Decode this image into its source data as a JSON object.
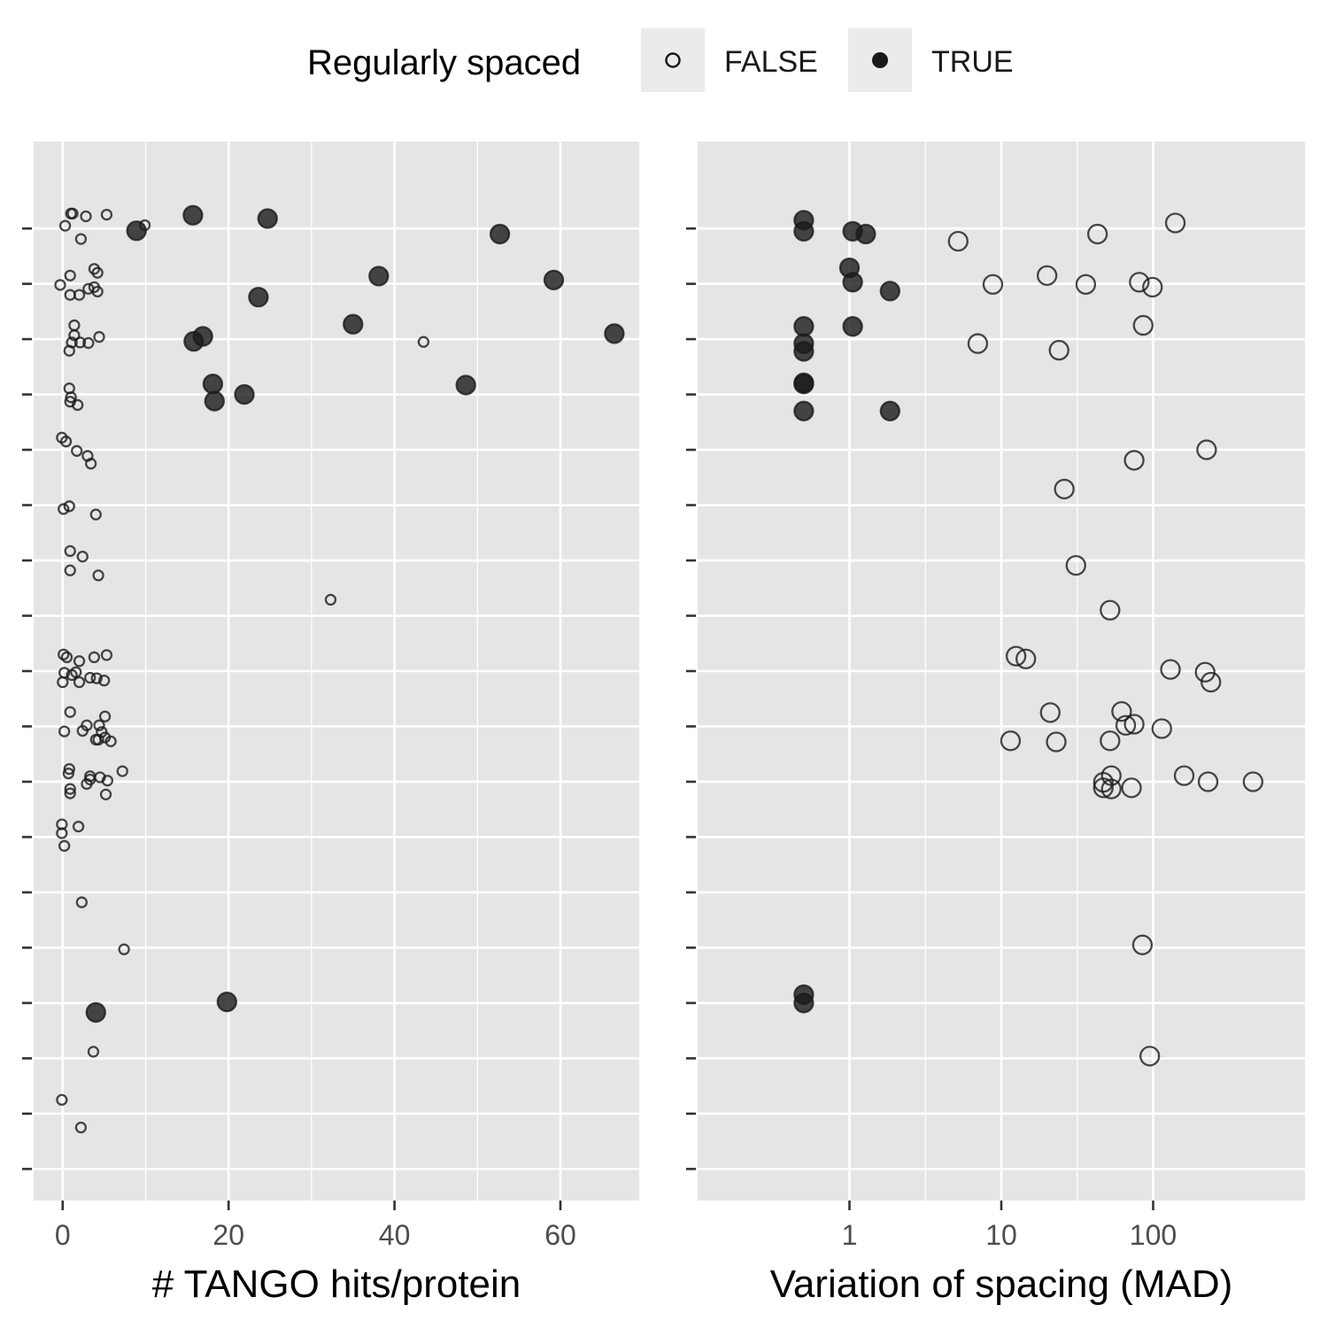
{
  "legend": {
    "title": "Regularly spaced",
    "items": [
      {
        "label": "FALSE",
        "filled": false
      },
      {
        "label": "TRUE",
        "filled": true
      }
    ]
  },
  "colors": {
    "panel_bg": "#e5e5e5",
    "grid": "#ffffff",
    "point": "#1a1a1a",
    "tick_label": "#4d4d4d"
  },
  "chart_data": [
    {
      "type": "scatter",
      "xlabel": "# TANGO hits/protein",
      "ylabel": "",
      "xlim": [
        -3.5,
        69.5
      ],
      "xticks": [
        0,
        20,
        40,
        60
      ],
      "ylim": [
        0.43,
        19.57
      ],
      "y_categories": 18,
      "grid": true,
      "legend_placement": "top",
      "points": [
        {
          "x": 1.0,
          "y": 18.27,
          "reg": false
        },
        {
          "x": 1.2,
          "y": 18.27,
          "reg": false
        },
        {
          "x": 2.8,
          "y": 18.22,
          "reg": false
        },
        {
          "x": 5.3,
          "y": 18.25,
          "reg": false
        },
        {
          "x": 0.3,
          "y": 18.05,
          "reg": false
        },
        {
          "x": 9.9,
          "y": 18.06,
          "reg": false
        },
        {
          "x": 2.2,
          "y": 17.81,
          "reg": false
        },
        {
          "x": 15.7,
          "y": 18.24,
          "reg": true
        },
        {
          "x": 24.7,
          "y": 18.18,
          "reg": true
        },
        {
          "x": 8.9,
          "y": 17.96,
          "reg": true
        },
        {
          "x": 52.7,
          "y": 17.9,
          "reg": true
        },
        {
          "x": 3.8,
          "y": 17.27,
          "reg": false
        },
        {
          "x": 4.2,
          "y": 17.2,
          "reg": false
        },
        {
          "x": 0.9,
          "y": 17.15,
          "reg": false
        },
        {
          "x": -0.3,
          "y": 16.98,
          "reg": false
        },
        {
          "x": 3.1,
          "y": 16.91,
          "reg": false
        },
        {
          "x": 3.8,
          "y": 16.94,
          "reg": false
        },
        {
          "x": 4.2,
          "y": 16.86,
          "reg": false
        },
        {
          "x": 0.9,
          "y": 16.8,
          "reg": false
        },
        {
          "x": 2.0,
          "y": 16.8,
          "reg": false
        },
        {
          "x": 38.1,
          "y": 17.14,
          "reg": true
        },
        {
          "x": 59.2,
          "y": 17.07,
          "reg": true
        },
        {
          "x": 23.6,
          "y": 16.76,
          "reg": true
        },
        {
          "x": 1.4,
          "y": 16.25,
          "reg": false
        },
        {
          "x": 1.4,
          "y": 16.07,
          "reg": false
        },
        {
          "x": 4.4,
          "y": 16.04,
          "reg": false
        },
        {
          "x": 1.1,
          "y": 15.94,
          "reg": false
        },
        {
          "x": 2.1,
          "y": 15.94,
          "reg": false
        },
        {
          "x": 3.1,
          "y": 15.93,
          "reg": false
        },
        {
          "x": 0.8,
          "y": 15.79,
          "reg": false
        },
        {
          "x": 43.5,
          "y": 15.95,
          "reg": false
        },
        {
          "x": 35.0,
          "y": 16.27,
          "reg": true
        },
        {
          "x": 16.9,
          "y": 16.05,
          "reg": true
        },
        {
          "x": 15.8,
          "y": 15.96,
          "reg": true
        },
        {
          "x": 66.5,
          "y": 16.1,
          "reg": true
        },
        {
          "x": 0.8,
          "y": 15.11,
          "reg": false
        },
        {
          "x": 1.0,
          "y": 14.95,
          "reg": false
        },
        {
          "x": 0.9,
          "y": 14.87,
          "reg": false
        },
        {
          "x": 1.8,
          "y": 14.81,
          "reg": false
        },
        {
          "x": 18.1,
          "y": 15.19,
          "reg": true
        },
        {
          "x": 48.6,
          "y": 15.17,
          "reg": true
        },
        {
          "x": 21.9,
          "y": 15.0,
          "reg": true
        },
        {
          "x": 18.3,
          "y": 14.88,
          "reg": true
        },
        {
          "x": -0.1,
          "y": 14.22,
          "reg": false
        },
        {
          "x": 0.4,
          "y": 14.15,
          "reg": false
        },
        {
          "x": 1.7,
          "y": 13.98,
          "reg": false
        },
        {
          "x": 3.0,
          "y": 13.89,
          "reg": false
        },
        {
          "x": 3.4,
          "y": 13.75,
          "reg": false
        },
        {
          "x": 0.8,
          "y": 12.98,
          "reg": false
        },
        {
          "x": 0.1,
          "y": 12.93,
          "reg": false
        },
        {
          "x": 4.0,
          "y": 12.83,
          "reg": false
        },
        {
          "x": 0.9,
          "y": 12.17,
          "reg": false
        },
        {
          "x": 2.4,
          "y": 12.07,
          "reg": false
        },
        {
          "x": 0.9,
          "y": 11.82,
          "reg": false
        },
        {
          "x": 4.3,
          "y": 11.73,
          "reg": false
        },
        {
          "x": 32.3,
          "y": 11.29,
          "reg": false
        },
        {
          "x": 0.1,
          "y": 10.3,
          "reg": false
        },
        {
          "x": 5.3,
          "y": 10.29,
          "reg": false
        },
        {
          "x": 0.5,
          "y": 10.25,
          "reg": false
        },
        {
          "x": 3.8,
          "y": 10.25,
          "reg": false
        },
        {
          "x": 2.0,
          "y": 10.18,
          "reg": false
        },
        {
          "x": 0.2,
          "y": 9.97,
          "reg": false
        },
        {
          "x": 1.6,
          "y": 9.98,
          "reg": false
        },
        {
          "x": 1.1,
          "y": 9.93,
          "reg": false
        },
        {
          "x": 3.3,
          "y": 9.88,
          "reg": false
        },
        {
          "x": 4.1,
          "y": 9.87,
          "reg": false
        },
        {
          "x": 5.0,
          "y": 9.83,
          "reg": false
        },
        {
          "x": 0.0,
          "y": 9.8,
          "reg": false
        },
        {
          "x": 2.0,
          "y": 9.8,
          "reg": false
        },
        {
          "x": 0.9,
          "y": 9.26,
          "reg": false
        },
        {
          "x": 5.1,
          "y": 9.18,
          "reg": false
        },
        {
          "x": 2.9,
          "y": 9.02,
          "reg": false
        },
        {
          "x": 4.4,
          "y": 9.02,
          "reg": false
        },
        {
          "x": 0.2,
          "y": 8.91,
          "reg": false
        },
        {
          "x": 2.4,
          "y": 8.92,
          "reg": false
        },
        {
          "x": 4.7,
          "y": 8.9,
          "reg": false
        },
        {
          "x": 5.1,
          "y": 8.8,
          "reg": false
        },
        {
          "x": 4.3,
          "y": 8.76,
          "reg": false
        },
        {
          "x": 4.0,
          "y": 8.76,
          "reg": false
        },
        {
          "x": 5.8,
          "y": 8.73,
          "reg": false
        },
        {
          "x": 0.8,
          "y": 8.23,
          "reg": false
        },
        {
          "x": 7.2,
          "y": 8.19,
          "reg": false
        },
        {
          "x": 0.7,
          "y": 8.15,
          "reg": false
        },
        {
          "x": 3.3,
          "y": 8.1,
          "reg": false
        },
        {
          "x": 4.5,
          "y": 8.08,
          "reg": false
        },
        {
          "x": 3.3,
          "y": 8.04,
          "reg": false
        },
        {
          "x": 5.4,
          "y": 8.02,
          "reg": false
        },
        {
          "x": 2.9,
          "y": 7.96,
          "reg": false
        },
        {
          "x": 0.9,
          "y": 7.87,
          "reg": false
        },
        {
          "x": 0.9,
          "y": 7.79,
          "reg": false
        },
        {
          "x": 5.2,
          "y": 7.77,
          "reg": false
        },
        {
          "x": -0.1,
          "y": 7.23,
          "reg": false
        },
        {
          "x": 1.9,
          "y": 7.19,
          "reg": false
        },
        {
          "x": -0.1,
          "y": 7.07,
          "reg": false
        },
        {
          "x": 0.2,
          "y": 6.84,
          "reg": false
        },
        {
          "x": 2.3,
          "y": 5.82,
          "reg": false
        },
        {
          "x": 7.4,
          "y": 4.97,
          "reg": false
        },
        {
          "x": 19.8,
          "y": 4.02,
          "reg": true
        },
        {
          "x": 4.0,
          "y": 3.83,
          "reg": true
        },
        {
          "x": 3.7,
          "y": 3.12,
          "reg": false
        },
        {
          "x": -0.1,
          "y": 2.25,
          "reg": false
        },
        {
          "x": 2.2,
          "y": 1.75,
          "reg": false
        }
      ]
    },
    {
      "type": "scatter",
      "xlabel": "Variation of spacing (MAD)",
      "ylabel": "",
      "x_scale": "log",
      "xlim": [
        0.1,
        1000
      ],
      "xticks": [
        1,
        10,
        100
      ],
      "xtick_labels": [
        "1",
        "10",
        "100"
      ],
      "ylim": [
        0.43,
        19.57
      ],
      "y_categories": 18,
      "grid": true,
      "points": [
        {
          "x": 0.5,
          "y": 18.15,
          "reg": true
        },
        {
          "x": 0.5,
          "y": 17.95,
          "reg": true
        },
        {
          "x": 1.05,
          "y": 17.95,
          "reg": true
        },
        {
          "x": 1.28,
          "y": 17.9,
          "reg": true
        },
        {
          "x": 5.2,
          "y": 17.77,
          "reg": false
        },
        {
          "x": 43,
          "y": 17.9,
          "reg": false
        },
        {
          "x": 140,
          "y": 18.1,
          "reg": false
        },
        {
          "x": 1.0,
          "y": 17.29,
          "reg": true
        },
        {
          "x": 1.05,
          "y": 17.03,
          "reg": true
        },
        {
          "x": 1.85,
          "y": 16.87,
          "reg": true
        },
        {
          "x": 8.8,
          "y": 16.99,
          "reg": false
        },
        {
          "x": 20,
          "y": 17.15,
          "reg": false
        },
        {
          "x": 36,
          "y": 16.99,
          "reg": false
        },
        {
          "x": 81,
          "y": 17.03,
          "reg": false
        },
        {
          "x": 99,
          "y": 16.94,
          "reg": false
        },
        {
          "x": 0.5,
          "y": 16.23,
          "reg": true
        },
        {
          "x": 1.05,
          "y": 16.23,
          "reg": true
        },
        {
          "x": 0.5,
          "y": 15.92,
          "reg": true
        },
        {
          "x": 0.5,
          "y": 15.78,
          "reg": true
        },
        {
          "x": 7.0,
          "y": 15.92,
          "reg": false
        },
        {
          "x": 24,
          "y": 15.8,
          "reg": false
        },
        {
          "x": 86,
          "y": 16.25,
          "reg": false
        },
        {
          "x": 0.5,
          "y": 15.21,
          "reg": true
        },
        {
          "x": 0.5,
          "y": 15.19,
          "reg": true
        },
        {
          "x": 0.5,
          "y": 14.7,
          "reg": true
        },
        {
          "x": 1.85,
          "y": 14.7,
          "reg": true
        },
        {
          "x": 225,
          "y": 14.0,
          "reg": false
        },
        {
          "x": 75,
          "y": 13.81,
          "reg": false
        },
        {
          "x": 26,
          "y": 13.29,
          "reg": false
        },
        {
          "x": 31,
          "y": 11.91,
          "reg": false
        },
        {
          "x": 52,
          "y": 11.1,
          "reg": false
        },
        {
          "x": 12.5,
          "y": 10.27,
          "reg": false
        },
        {
          "x": 14.5,
          "y": 10.22,
          "reg": false
        },
        {
          "x": 130,
          "y": 10.03,
          "reg": false
        },
        {
          "x": 220,
          "y": 9.98,
          "reg": false
        },
        {
          "x": 240,
          "y": 9.8,
          "reg": false
        },
        {
          "x": 21,
          "y": 9.25,
          "reg": false
        },
        {
          "x": 62,
          "y": 9.27,
          "reg": false
        },
        {
          "x": 75,
          "y": 9.04,
          "reg": false
        },
        {
          "x": 66,
          "y": 9.02,
          "reg": false
        },
        {
          "x": 114,
          "y": 8.96,
          "reg": false
        },
        {
          "x": 11.5,
          "y": 8.74,
          "reg": false
        },
        {
          "x": 23,
          "y": 8.72,
          "reg": false
        },
        {
          "x": 52,
          "y": 8.74,
          "reg": false
        },
        {
          "x": 53,
          "y": 8.11,
          "reg": false
        },
        {
          "x": 160,
          "y": 8.11,
          "reg": false
        },
        {
          "x": 47,
          "y": 7.99,
          "reg": false
        },
        {
          "x": 230,
          "y": 8.0,
          "reg": false
        },
        {
          "x": 455,
          "y": 8.0,
          "reg": false
        },
        {
          "x": 47,
          "y": 7.89,
          "reg": false
        },
        {
          "x": 53,
          "y": 7.87,
          "reg": false
        },
        {
          "x": 72,
          "y": 7.89,
          "reg": false
        },
        {
          "x": 85,
          "y": 5.05,
          "reg": false
        },
        {
          "x": 0.5,
          "y": 4.15,
          "reg": true
        },
        {
          "x": 0.5,
          "y": 4.0,
          "reg": true
        },
        {
          "x": 95,
          "y": 3.04,
          "reg": false
        }
      ]
    }
  ]
}
